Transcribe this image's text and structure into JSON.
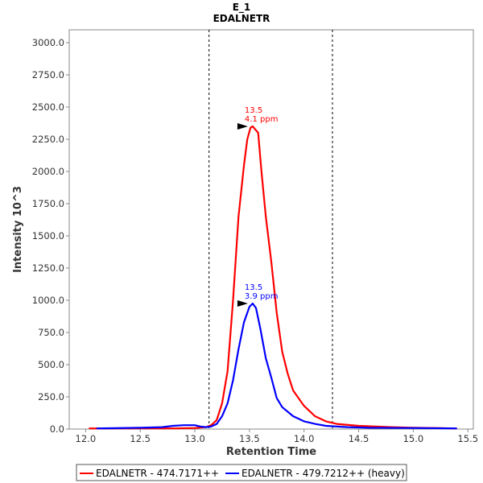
{
  "chart_data": {
    "type": "line",
    "title": "E_1",
    "subtitle": "EDALNETR",
    "xlabel": "Retention Time",
    "ylabel": "Intensity 10^3",
    "xlim": [
      11.85,
      15.55
    ],
    "ylim": [
      0,
      3100
    ],
    "x_ticks": [
      "12.0",
      "12.5",
      "13.0",
      "13.5",
      "14.0",
      "14.5",
      "15.0",
      "15.5"
    ],
    "y_ticks": [
      "0.0",
      "250.0",
      "500.0",
      "750.0",
      "1000.0",
      "1250.0",
      "1500.0",
      "1750.0",
      "2000.0",
      "2250.0",
      "2500.0",
      "2750.0",
      "3000.0"
    ],
    "integration_bounds": [
      13.13,
      14.26
    ],
    "grid": false,
    "legend_position": "bottom",
    "series": [
      {
        "name": "EDALNETR - 474.7171++",
        "color": "#ff0000",
        "x": [
          12.03,
          12.5,
          12.8,
          13.0,
          13.1,
          13.15,
          13.2,
          13.25,
          13.3,
          13.35,
          13.4,
          13.45,
          13.48,
          13.51,
          13.53,
          13.55,
          13.58,
          13.61,
          13.65,
          13.7,
          13.75,
          13.8,
          13.85,
          13.9,
          14.0,
          14.1,
          14.2,
          14.3,
          14.5,
          14.8,
          15.0,
          15.2,
          15.4
        ],
        "y": [
          5,
          5,
          5,
          8,
          15,
          30,
          70,
          200,
          450,
          1000,
          1650,
          2050,
          2250,
          2340,
          2350,
          2330,
          2300,
          2000,
          1650,
          1300,
          900,
          600,
          430,
          300,
          180,
          100,
          60,
          40,
          25,
          15,
          10,
          8,
          5
        ]
      },
      {
        "name": "EDALNETR - 479.7212++ (heavy)",
        "color": "#0000ff",
        "x": [
          12.1,
          12.5,
          12.7,
          12.8,
          12.9,
          13.0,
          13.05,
          13.1,
          13.15,
          13.2,
          13.25,
          13.3,
          13.35,
          13.4,
          13.45,
          13.5,
          13.53,
          13.56,
          13.6,
          13.65,
          13.7,
          13.75,
          13.8,
          13.9,
          14.0,
          14.1,
          14.2,
          14.4,
          14.6,
          15.0,
          15.4
        ],
        "y": [
          5,
          10,
          15,
          25,
          30,
          30,
          20,
          15,
          20,
          40,
          100,
          200,
          380,
          620,
          830,
          950,
          975,
          940,
          780,
          550,
          400,
          240,
          170,
          100,
          60,
          40,
          25,
          15,
          10,
          8,
          5
        ]
      }
    ],
    "annotations": [
      {
        "series": 0,
        "x": 13.53,
        "y": 2350,
        "line1": "13.5",
        "line2": "4.1 ppm"
      },
      {
        "series": 1,
        "x": 13.53,
        "y": 975,
        "line1": "13.5",
        "line2": "3.9 ppm"
      }
    ]
  }
}
